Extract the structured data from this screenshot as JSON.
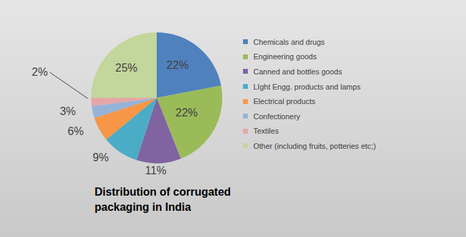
{
  "chart_data": {
    "type": "pie",
    "title": "Distribution of corrugated packaging in India",
    "categories": [
      "Chemicals and drugs",
      "Engineering goods",
      "Canned and bottles goods",
      "LIght Engg. products and lamps",
      "Electrical products",
      "Confectionery",
      "Textiles",
      "Other (including fruits, potteries etc;)"
    ],
    "values": [
      22,
      22,
      11,
      9,
      6,
      3,
      2,
      25
    ],
    "value_labels": [
      "22%",
      "22%",
      "11%",
      "9%",
      "6%",
      "3%",
      "2%",
      "25%"
    ],
    "colors": [
      "#4f81bd",
      "#9bbb59",
      "#8064a2",
      "#4bacc6",
      "#f79646",
      "#95b3d7",
      "#e6a6a6",
      "#c3d69b"
    ],
    "legend": "right",
    "data_labels": true
  }
}
